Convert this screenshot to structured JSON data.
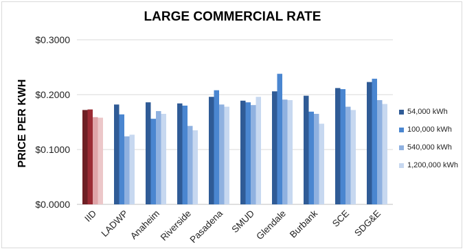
{
  "chart_data": {
    "type": "bar",
    "title": "LARGE COMMERCIAL RATE",
    "ylabel": "PRICE PER KWH",
    "xlabel": "",
    "ylim": [
      0,
      0.3
    ],
    "yticks": [
      0,
      0.1,
      0.2,
      0.3
    ],
    "ytick_labels": [
      "$0.0000",
      "$0.1000",
      "$0.2000",
      "$0.3000"
    ],
    "grid": true,
    "legend_position": "right",
    "categories": [
      "IID",
      "LADWP",
      "Anaheim",
      "Riverside",
      "Pasadena",
      "SMUD",
      "Glendale",
      "Burbank",
      "SCE",
      "SDG&E"
    ],
    "series": [
      {
        "name": "54,000 kWh",
        "color": "#2f5b96",
        "values": [
          0.172,
          0.182,
          0.186,
          0.184,
          0.196,
          0.189,
          0.206,
          0.198,
          0.212,
          0.223
        ]
      },
      {
        "name": "100,000 kWh",
        "color": "#4a86d0",
        "values": [
          0.173,
          0.164,
          0.156,
          0.18,
          0.208,
          0.186,
          0.238,
          0.169,
          0.21,
          0.229
        ]
      },
      {
        "name": "540,000 kWh",
        "color": "#8fb1e0",
        "values": [
          0.159,
          0.124,
          0.17,
          0.143,
          0.182,
          0.181,
          0.191,
          0.165,
          0.178,
          0.19
        ]
      },
      {
        "name": "1,200,000 kWh",
        "color": "#c7d8f0",
        "values": [
          0.158,
          0.127,
          0.165,
          0.135,
          0.178,
          0.196,
          0.19,
          0.147,
          0.172,
          0.183
        ]
      }
    ],
    "highlight": {
      "category": "IID",
      "colors": [
        "#6e1f24",
        "#9b2b34",
        "#dfa4a8",
        "#ecc7c9"
      ]
    },
    "colors": {
      "grid": "#d9d9d9",
      "axis": "#bfbfbf"
    }
  }
}
